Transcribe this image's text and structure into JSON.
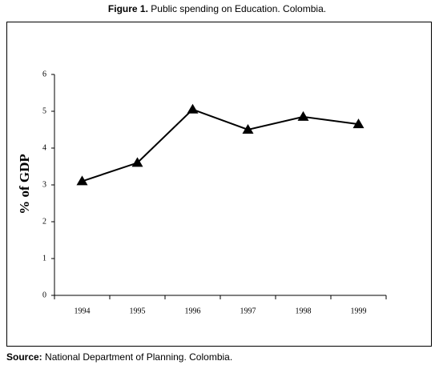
{
  "chart_data": {
    "type": "line",
    "title_label": "Figure 1.",
    "title": "Public spending on Education. Colombia.",
    "y_label": "% of GDP",
    "categories": [
      "1994",
      "1995",
      "1996",
      "1997",
      "1998",
      "1999"
    ],
    "values": [
      3.1,
      3.6,
      5.05,
      4.5,
      4.85,
      4.65
    ],
    "color": "#000000",
    "marker": "triangle",
    "ylim": [
      0,
      6
    ],
    "yticks": [
      0,
      1,
      2,
      3,
      4,
      5,
      6
    ],
    "grid": false,
    "source_label": "Source:",
    "source": "National Department of Planning. Colombia."
  }
}
